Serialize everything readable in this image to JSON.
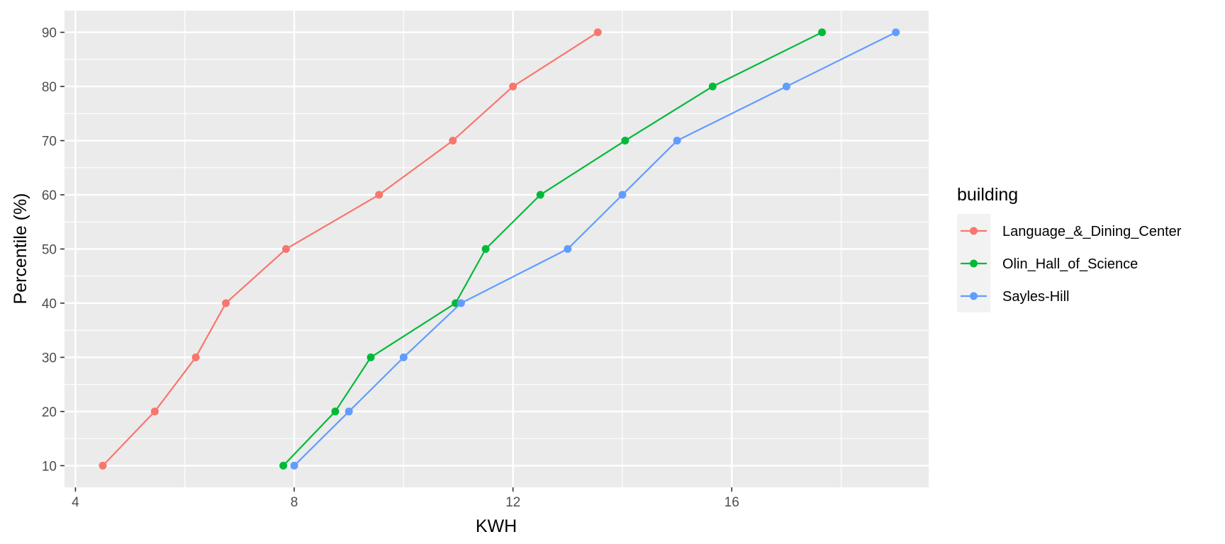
{
  "chart_data": {
    "type": "line",
    "xlabel": "KWH",
    "ylabel": "Percentile (%)",
    "xlim": [
      3.8,
      19.6
    ],
    "ylim": [
      6,
      94
    ],
    "x_ticks": [
      4,
      8,
      12,
      16
    ],
    "x_tick_labels": [
      "4",
      "8",
      "12",
      "16"
    ],
    "y_ticks": [
      10,
      20,
      30,
      40,
      50,
      60,
      70,
      80,
      90
    ],
    "y_tick_labels": [
      "10",
      "20",
      "30",
      "40",
      "50",
      "60",
      "70",
      "80",
      "90"
    ],
    "grid": true,
    "legend": {
      "title": "building",
      "placement": "right"
    },
    "series": [
      {
        "name": "Language_&_Dining_Center",
        "color": "#F8766D",
        "points": [
          {
            "x": 4.5,
            "y": 10
          },
          {
            "x": 5.45,
            "y": 20
          },
          {
            "x": 6.2,
            "y": 30
          },
          {
            "x": 6.75,
            "y": 40
          },
          {
            "x": 7.85,
            "y": 50
          },
          {
            "x": 9.55,
            "y": 60
          },
          {
            "x": 10.9,
            "y": 70
          },
          {
            "x": 12.0,
            "y": 80
          },
          {
            "x": 13.55,
            "y": 90
          }
        ]
      },
      {
        "name": "Olin_Hall_of_Science",
        "color": "#00BA38",
        "points": [
          {
            "x": 7.8,
            "y": 10
          },
          {
            "x": 8.75,
            "y": 20
          },
          {
            "x": 9.4,
            "y": 30
          },
          {
            "x": 10.95,
            "y": 40
          },
          {
            "x": 11.5,
            "y": 50
          },
          {
            "x": 12.5,
            "y": 60
          },
          {
            "x": 14.05,
            "y": 70
          },
          {
            "x": 15.65,
            "y": 80
          },
          {
            "x": 17.65,
            "y": 90
          }
        ]
      },
      {
        "name": "Sayles-Hill",
        "color": "#619CFF",
        "points": [
          {
            "x": 8.0,
            "y": 10
          },
          {
            "x": 9.0,
            "y": 20
          },
          {
            "x": 10.0,
            "y": 30
          },
          {
            "x": 11.05,
            "y": 40
          },
          {
            "x": 13.0,
            "y": 50
          },
          {
            "x": 14.0,
            "y": 60
          },
          {
            "x": 15.0,
            "y": 70
          },
          {
            "x": 17.0,
            "y": 80
          },
          {
            "x": 19.0,
            "y": 90
          }
        ]
      }
    ]
  }
}
